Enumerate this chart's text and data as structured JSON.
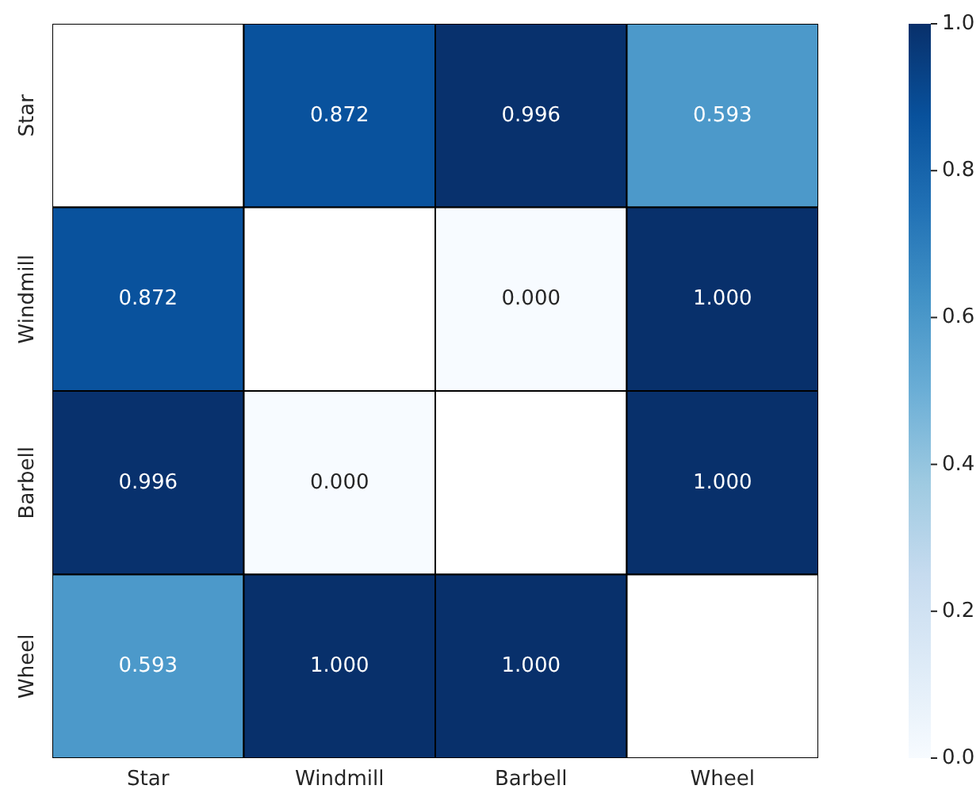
{
  "chart_data": {
    "type": "heatmap",
    "categories": [
      "Star",
      "Windmill",
      "Barbell",
      "Wheel"
    ],
    "y_categories": [
      "Star",
      "Windmill",
      "Barbell",
      "Wheel"
    ],
    "cells": [
      [
        null,
        0.872,
        0.996,
        0.593
      ],
      [
        0.872,
        null,
        0,
        1
      ],
      [
        0.996,
        0,
        null,
        1
      ],
      [
        0.593,
        1,
        1,
        null
      ]
    ],
    "cell_labels": [
      [
        null,
        "0.872",
        "0.996",
        "0.593"
      ],
      [
        "0.872",
        null,
        "0.000",
        "1.000"
      ],
      [
        "0.996",
        "0.000",
        null,
        "1.000"
      ],
      [
        "0.593",
        "1.000",
        "1.000",
        null
      ]
    ],
    "data_labels": true,
    "clim": [
      0,
      1
    ],
    "cticks": [
      {
        "value": 0,
        "label": "0.0"
      },
      {
        "value": 0.2,
        "label": "0.2"
      },
      {
        "value": 0.4,
        "label": "0.4"
      },
      {
        "value": 0.6,
        "label": "0.6"
      },
      {
        "value": 0.8,
        "label": "0.8"
      },
      {
        "value": 1,
        "label": "1.0"
      }
    ]
  }
}
